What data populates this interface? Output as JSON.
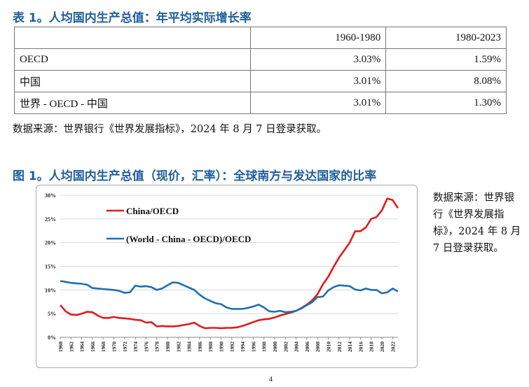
{
  "table1": {
    "title": "表 1。人均国内生产总值：年平均实际增长率",
    "columns": [
      "",
      "1960-1980",
      "1980-2023"
    ],
    "rows": [
      [
        "OECD",
        "3.03%",
        "1.59%"
      ],
      [
        "中国",
        "3.01%",
        "8.08%"
      ],
      [
        "世界 - OECD - 中国",
        "3.01%",
        "1.30%"
      ]
    ],
    "source": "数据来源：世界银行《世界发展指标》，2024 年 8 月 7 日登录获取。"
  },
  "figure1": {
    "title": "图 1。人均国内生产总值（现价，汇率）：全球南方与发达国家的比率",
    "side_source": "数据来源：世界银行《世界发展指标》，2024 年 8 月 7 日登录获取。"
  },
  "chart_data": {
    "type": "line",
    "title": "",
    "xlabel": "",
    "ylabel": "",
    "xlim": [
      1960,
      2023
    ],
    "ylim": [
      0,
      30
    ],
    "y_ticks": [
      "0%",
      "5%",
      "10%",
      "15%",
      "20%",
      "25%",
      "30%"
    ],
    "x_ticks": [
      "1960",
      "1962",
      "1964",
      "1966",
      "1968",
      "1970",
      "1972",
      "1974",
      "1976",
      "1978",
      "1980",
      "1982",
      "1984",
      "1986",
      "1988",
      "1990",
      "1992",
      "1994",
      "1996",
      "1998",
      "2000",
      "2002",
      "2004",
      "2006",
      "2008",
      "2010",
      "2012",
      "2014",
      "2016",
      "2018",
      "2020",
      "2022"
    ],
    "grid": "horizontal",
    "series": [
      {
        "name": "China/OECD",
        "color": "#e01b1b",
        "x": [
          1960,
          1961,
          1962,
          1963,
          1964,
          1965,
          1966,
          1967,
          1968,
          1969,
          1970,
          1971,
          1972,
          1973,
          1974,
          1975,
          1976,
          1977,
          1978,
          1979,
          1980,
          1981,
          1982,
          1983,
          1984,
          1985,
          1986,
          1987,
          1988,
          1989,
          1990,
          1991,
          1992,
          1993,
          1994,
          1995,
          1996,
          1997,
          1998,
          1999,
          2000,
          2001,
          2002,
          2003,
          2004,
          2005,
          2006,
          2007,
          2008,
          2009,
          2010,
          2011,
          2012,
          2013,
          2014,
          2015,
          2016,
          2017,
          2018,
          2019,
          2020,
          2021,
          2022,
          2023
        ],
        "values": [
          6.8,
          5.5,
          4.8,
          4.7,
          5.0,
          5.4,
          5.3,
          4.6,
          4.1,
          4.1,
          4.3,
          4.1,
          4.0,
          3.9,
          3.7,
          3.6,
          3.1,
          3.2,
          2.3,
          2.4,
          2.3,
          2.3,
          2.4,
          2.6,
          2.8,
          3.1,
          2.4,
          1.9,
          2.0,
          2.0,
          1.9,
          2.0,
          2.0,
          2.1,
          2.4,
          2.8,
          3.2,
          3.6,
          3.8,
          3.9,
          4.2,
          4.6,
          4.9,
          5.2,
          5.6,
          6.2,
          6.9,
          7.8,
          9.1,
          11.2,
          12.8,
          14.9,
          16.8,
          18.4,
          20.0,
          22.4,
          22.4,
          23.2,
          25.0,
          25.4,
          26.8,
          29.3,
          29.0,
          27.3
        ]
      },
      {
        "name": "(World - China - OECD)/OECD",
        "color": "#1f6fb2",
        "x": [
          1960,
          1961,
          1962,
          1963,
          1964,
          1965,
          1966,
          1967,
          1968,
          1969,
          1970,
          1971,
          1972,
          1973,
          1974,
          1975,
          1976,
          1977,
          1978,
          1979,
          1980,
          1981,
          1982,
          1983,
          1984,
          1985,
          1986,
          1987,
          1988,
          1989,
          1990,
          1991,
          1992,
          1993,
          1994,
          1995,
          1996,
          1997,
          1998,
          1999,
          2000,
          2001,
          2002,
          2003,
          2004,
          2005,
          2006,
          2007,
          2008,
          2009,
          2010,
          2011,
          2012,
          2013,
          2014,
          2015,
          2016,
          2017,
          2018,
          2019,
          2020,
          2021,
          2022,
          2023
        ],
        "values": [
          11.9,
          11.7,
          11.5,
          11.4,
          11.3,
          11.1,
          10.4,
          10.3,
          10.2,
          10.1,
          10.0,
          9.8,
          9.4,
          9.5,
          10.9,
          10.7,
          10.8,
          10.6,
          10.0,
          10.3,
          11.0,
          11.6,
          11.5,
          11.0,
          10.5,
          10.0,
          9.0,
          8.2,
          7.7,
          7.2,
          7.0,
          6.3,
          6.0,
          6.0,
          6.0,
          6.2,
          6.5,
          6.9,
          6.3,
          5.5,
          5.4,
          5.6,
          5.3,
          5.4,
          5.6,
          6.1,
          6.8,
          7.4,
          8.5,
          8.6,
          9.9,
          10.6,
          11.0,
          10.9,
          10.8,
          10.1,
          9.9,
          10.3,
          10.0,
          10.0,
          9.3,
          9.5,
          10.3,
          9.7
        ]
      }
    ]
  },
  "page_number": "4"
}
